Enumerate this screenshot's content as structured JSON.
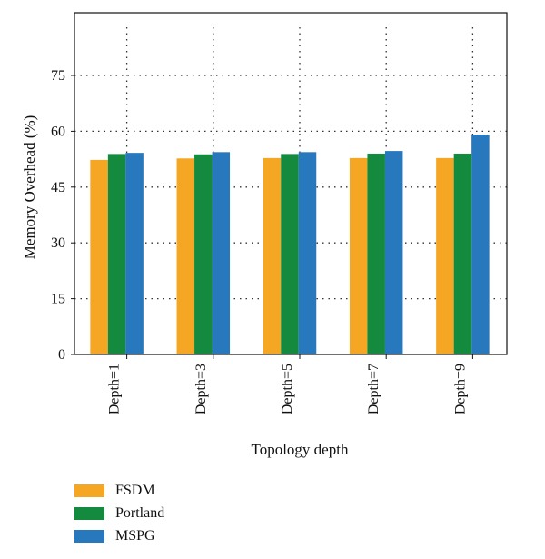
{
  "chart_data": {
    "type": "bar",
    "categories": [
      "Depth=1",
      "Depth=3",
      "Depth=5",
      "Depth=7",
      "Depth=9"
    ],
    "series": [
      {
        "name": "FSDM",
        "color": "#F5A623",
        "values": [
          52.3,
          52.7,
          52.8,
          52.8,
          52.8
        ]
      },
      {
        "name": "Portland",
        "color": "#138A3E",
        "values": [
          53.9,
          53.8,
          53.9,
          54.0,
          54.0
        ]
      },
      {
        "name": "MSPG",
        "color": "#2878BD",
        "values": [
          54.2,
          54.4,
          54.4,
          54.7,
          59.1
        ]
      }
    ],
    "xlabel": "Topology depth",
    "ylabel": "Memory Overhead (%)",
    "ylim": [
      0,
      75
    ],
    "yticks": [
      0,
      15,
      30,
      45,
      60,
      75
    ],
    "grid": "dotted",
    "legend_position": "bottom-left"
  }
}
